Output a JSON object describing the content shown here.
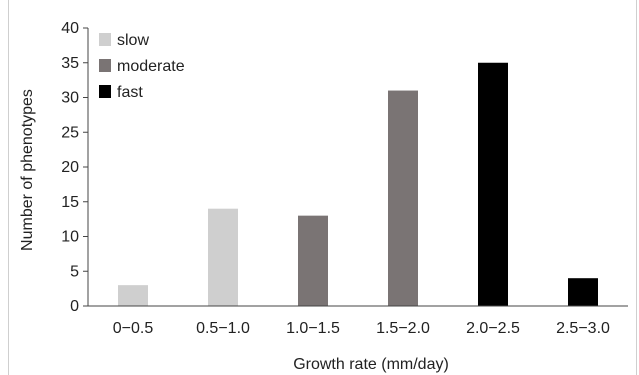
{
  "chart_data": {
    "type": "bar",
    "categories": [
      "0−0.5",
      "0.5−1.0",
      "1.0−1.5",
      "1.5−2.0",
      "2.0−2.5",
      "2.5−3.0"
    ],
    "values": [
      3,
      14,
      13,
      31,
      35,
      4
    ],
    "bar_groups": [
      "slow",
      "slow",
      "moderate",
      "moderate",
      "fast",
      "fast"
    ],
    "legend": [
      {
        "key": "slow",
        "label": "slow",
        "color": "#cfcfcf"
      },
      {
        "key": "moderate",
        "label": "moderate",
        "color": "#7a7474"
      },
      {
        "key": "fast",
        "label": "fast",
        "color": "#000000"
      }
    ],
    "xlabel": "Growth rate (mm/day)",
    "ylabel": "Number of  phenotypes",
    "ylim": [
      0,
      40
    ],
    "yticks": [
      0,
      5,
      10,
      15,
      20,
      25,
      30,
      35,
      40
    ],
    "legend_position": "top-left",
    "grid": false
  }
}
